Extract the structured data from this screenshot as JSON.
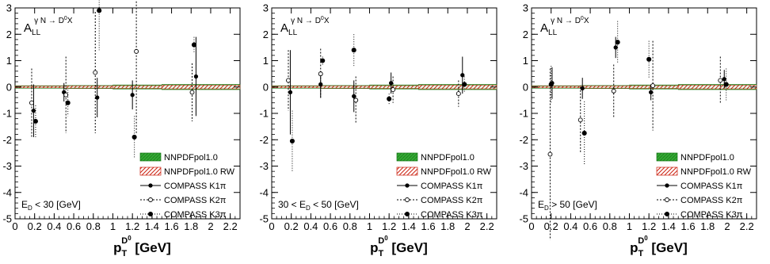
{
  "figure": {
    "colors": {
      "nnpdf_fill": "#33aa33",
      "nnpdf_rw_fill": "#cc2211",
      "axis": "#000000"
    }
  },
  "chart_data": [
    {
      "type": "scatter",
      "observable": {
        "symbol": "A",
        "sub": "LL",
        "sup": "γ N → D",
        "sup2": "0",
        "tail": "X"
      },
      "selection": {
        "pre": "E",
        "sub": "D",
        "post": " < 30 [GeV]"
      },
      "xlabel": {
        "main": "p",
        "sub": "T",
        "sup": "D",
        "sup2": "0",
        "tail": " [GeV]"
      },
      "xlim": [
        0,
        2.3
      ],
      "ylim": [
        -5,
        3
      ],
      "x_ticks": [
        "0",
        "0.2",
        "0.4",
        "0.6",
        "0.8",
        "1",
        "1.2",
        "1.4",
        "1.6",
        "1.8",
        "2",
        "2.2"
      ],
      "y_ticks": [
        "-5",
        "-4",
        "-3",
        "-2",
        "-1",
        "0",
        "1",
        "2",
        "3"
      ],
      "legend": [
        "NNPDFpol1.0",
        "NNPDFpol1.0 RW",
        "COMPASS K1π",
        "COMPASS K2π",
        "COMPASS K3π"
      ],
      "bands": [
        {
          "name": "NNPDFpol1.0",
          "x": [
            0,
            0.5,
            1.0,
            1.5,
            2.3
          ],
          "lower": [
            -0.04,
            -0.05,
            -0.06,
            -0.08,
            -0.1
          ],
          "upper": [
            0.04,
            0.05,
            0.06,
            0.08,
            0.1
          ]
        },
        {
          "name": "NNPDFpol1.0 RW",
          "x": [
            0,
            0.5,
            1.0,
            1.5,
            2.3
          ],
          "lower": [
            -0.02,
            -0.03,
            -0.04,
            -0.05,
            -0.07
          ],
          "upper": [
            0.02,
            0.03,
            0.04,
            0.05,
            0.07
          ]
        }
      ],
      "series": [
        {
          "name": "COMPASS K1π",
          "x": [
            0.19,
            0.5,
            0.84,
            1.2,
            1.85
          ],
          "y": [
            -0.9,
            -0.2,
            -0.4,
            -0.3,
            0.4
          ],
          "err": [
            1.0,
            0.35,
            0.75,
            0.55,
            1.5
          ]
        },
        {
          "name": "COMPASS K2π",
          "x": [
            0.17,
            0.52,
            0.82,
            1.24,
            1.81
          ],
          "y": [
            -0.6,
            -0.3,
            0.55,
            1.35,
            -0.2
          ],
          "err": [
            1.3,
            1.45,
            2.3,
            3.1,
            1.1
          ]
        },
        {
          "name": "COMPASS K3π",
          "x": [
            0.21,
            0.54,
            0.86,
            1.22,
            1.83
          ],
          "y": [
            -1.3,
            -0.6,
            2.9,
            -1.9,
            1.6
          ],
          "err": [
            0.6,
            0.5,
            1.5,
            0.8,
            0.3
          ]
        }
      ]
    },
    {
      "type": "scatter",
      "observable": {
        "symbol": "A",
        "sub": "LL",
        "sup": "γ N → D",
        "sup2": "0",
        "tail": "X"
      },
      "selection": {
        "pre": "30 < E",
        "sub": "D",
        "post": " < 50 [GeV]"
      },
      "xlabel": {
        "main": "p",
        "sub": "T",
        "sup": "D",
        "sup2": "0",
        "tail": " [GeV]"
      },
      "xlim": [
        0,
        2.3
      ],
      "ylim": [
        -5,
        3
      ],
      "x_ticks": [
        "0",
        "0.2",
        "0.4",
        "0.6",
        "0.8",
        "1",
        "1.2",
        "1.4",
        "1.6",
        "1.8",
        "2",
        "2.2"
      ],
      "y_ticks": [
        "-5",
        "-4",
        "-3",
        "-2",
        "-1",
        "0",
        "1",
        "2",
        "3"
      ],
      "legend": [
        "NNPDFpol1.0",
        "NNPDFpol1.0 RW",
        "COMPASS K1π",
        "COMPASS K2π",
        "COMPASS K3π"
      ],
      "bands": [
        {
          "name": "NNPDFpol1.0",
          "x": [
            0,
            0.5,
            1.0,
            1.5,
            2.3
          ],
          "lower": [
            -0.04,
            -0.05,
            -0.06,
            -0.08,
            -0.1
          ],
          "upper": [
            0.04,
            0.05,
            0.06,
            0.08,
            0.1
          ]
        },
        {
          "name": "NNPDFpol1.0 RW",
          "x": [
            0,
            0.5,
            1.0,
            1.5,
            2.3
          ],
          "lower": [
            -0.02,
            -0.03,
            -0.04,
            -0.05,
            -0.07
          ],
          "upper": [
            0.02,
            0.03,
            0.04,
            0.05,
            0.07
          ]
        }
      ],
      "series": [
        {
          "name": "COMPASS K1π",
          "x": [
            0.19,
            0.5,
            0.84,
            1.22,
            1.95
          ],
          "y": [
            -0.2,
            0.1,
            -0.35,
            0.15,
            0.45
          ],
          "err": [
            1.6,
            0.5,
            0.6,
            0.4,
            0.7
          ]
        },
        {
          "name": "COMPASS K2π",
          "x": [
            0.17,
            0.5,
            0.86,
            1.24,
            1.91
          ],
          "y": [
            0.25,
            0.5,
            -0.5,
            -0.1,
            -0.25
          ],
          "err": [
            1.15,
            0.95,
            0.9,
            0.5,
            0.5
          ]
        },
        {
          "name": "COMPASS K3π",
          "x": [
            0.21,
            0.52,
            0.84,
            1.2,
            1.97
          ],
          "y": [
            -2.05,
            1.0,
            1.4,
            -0.45,
            0.1
          ],
          "err": [
            1.15,
            0.15,
            0.6,
            0.2,
            0.3
          ]
        }
      ]
    },
    {
      "type": "scatter",
      "observable": {
        "symbol": "A",
        "sub": "LL",
        "sup": "γ N → D",
        "sup2": "0",
        "tail": "X"
      },
      "selection": {
        "pre": "E",
        "sub": "D",
        "post": " > 50 [GeV]"
      },
      "xlabel": {
        "main": "p",
        "sub": "T",
        "sup": "D",
        "sup2": "0",
        "tail": " [GeV]"
      },
      "xlim": [
        0,
        2.3
      ],
      "ylim": [
        -5,
        3
      ],
      "x_ticks": [
        "0",
        "0.2",
        "0.4",
        "0.6",
        "0.8",
        "1",
        "1.2",
        "1.4",
        "1.6",
        "1.8",
        "2",
        "2.2"
      ],
      "y_ticks": [
        "-5",
        "-4",
        "-3",
        "-2",
        "-1",
        "0",
        "1",
        "2",
        "3"
      ],
      "legend": [
        "NNPDFpol1.0",
        "NNPDFpol1.0 RW",
        "COMPASS K1π",
        "COMPASS K2π",
        "COMPASS K3π"
      ],
      "bands": [
        {
          "name": "NNPDFpol1.0",
          "x": [
            0,
            0.5,
            1.0,
            1.5,
            2.3
          ],
          "lower": [
            -0.04,
            -0.05,
            -0.06,
            -0.08,
            -0.1
          ],
          "upper": [
            0.04,
            0.05,
            0.06,
            0.08,
            0.1
          ]
        },
        {
          "name": "NNPDFpol1.0 RW",
          "x": [
            0,
            0.5,
            1.0,
            1.5,
            2.3
          ],
          "lower": [
            -0.02,
            -0.03,
            -0.04,
            -0.05,
            -0.07
          ],
          "upper": [
            0.02,
            0.03,
            0.04,
            0.05,
            0.07
          ]
        }
      ],
      "series": [
        {
          "name": "COMPASS K1π",
          "x": [
            0.21,
            0.52,
            0.86,
            1.22,
            1.97
          ],
          "y": [
            0.15,
            -0.05,
            1.5,
            -0.2,
            0.3
          ],
          "err": [
            0.6,
            0.4,
            0.4,
            0.3,
            0.35
          ]
        },
        {
          "name": "COMPASS K2π",
          "x": [
            0.19,
            0.5,
            0.84,
            1.24,
            1.93
          ],
          "y": [
            -2.55,
            -1.25,
            -0.15,
            0.05,
            0.25
          ],
          "err": [
            3.25,
            1.25,
            1.0,
            1.7,
            0.9
          ]
        },
        {
          "name": "COMPASS K3π",
          "x": [
            0.2,
            0.54,
            0.88,
            1.2,
            1.99
          ],
          "y": [
            0.1,
            -1.75,
            1.7,
            1.05,
            0.1
          ],
          "err": [
            0.7,
            1.2,
            0.8,
            0.7,
            0.6
          ]
        }
      ]
    }
  ]
}
